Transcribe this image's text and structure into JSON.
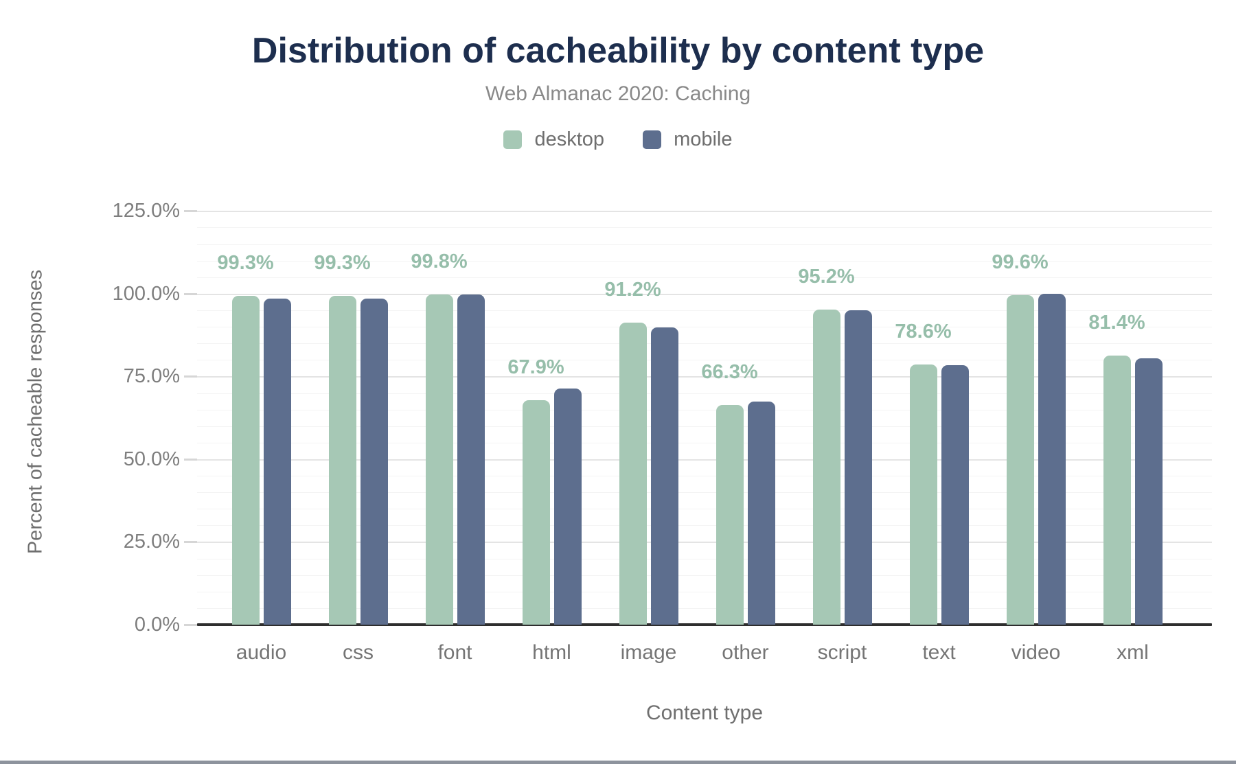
{
  "title": "Distribution of cacheability by content type",
  "subtitle": "Web Almanac 2020: Caching",
  "colors": {
    "desktop": "#a6c8b5",
    "mobile": "#5d6e8e",
    "bar_label": "#96beaa",
    "title": "#1d2e4e",
    "axis_line": "#2e2e2e"
  },
  "chart_data": {
    "type": "bar",
    "title": "Distribution of cacheability by content type",
    "subtitle": "Web Almanac 2020: Caching",
    "categories": [
      "audio",
      "css",
      "font",
      "html",
      "image",
      "other",
      "script",
      "text",
      "video",
      "xml"
    ],
    "series": [
      {
        "name": "desktop",
        "color": "#a6c8b5",
        "values": [
          99.3,
          99.3,
          99.8,
          67.9,
          91.2,
          66.3,
          95.2,
          78.6,
          99.6,
          81.4
        ]
      },
      {
        "name": "mobile",
        "color": "#5d6e8e",
        "values": [
          98.6,
          98.6,
          99.7,
          71.3,
          89.8,
          67.5,
          95.1,
          78.5,
          99.9,
          80.4
        ]
      }
    ],
    "bar_labels": {
      "series": "desktop",
      "color": "#96beaa",
      "values": [
        "99.3%",
        "99.3%",
        "99.8%",
        "67.9%",
        "91.2%",
        "66.3%",
        "95.2%",
        "78.6%",
        "99.6%",
        "81.4%"
      ]
    },
    "xlabel": "Content type",
    "ylabel": "Percent of cacheable responses",
    "y_ticks": [
      "0.0%",
      "25.0%",
      "50.0%",
      "75.0%",
      "100.0%",
      "125.0%"
    ],
    "ylim": [
      0,
      125
    ],
    "grid": {
      "minor_step": 5,
      "major_step": 25,
      "minor_on": true,
      "major_on": true
    },
    "legend_position": "top-center"
  }
}
